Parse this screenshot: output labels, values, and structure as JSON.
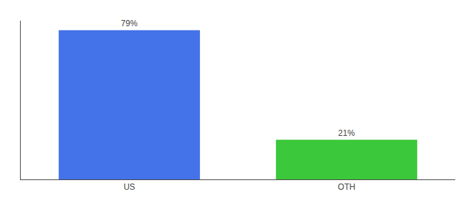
{
  "chart_data": {
    "type": "bar",
    "categories": [
      "US",
      "OTH"
    ],
    "values": [
      79,
      21
    ],
    "value_labels": [
      "79%",
      "21%"
    ],
    "colors": [
      "#4472e8",
      "#3bc83b"
    ],
    "ylim": [
      0,
      84
    ],
    "data_labels": true,
    "tick_labels": "x",
    "grid": false
  }
}
